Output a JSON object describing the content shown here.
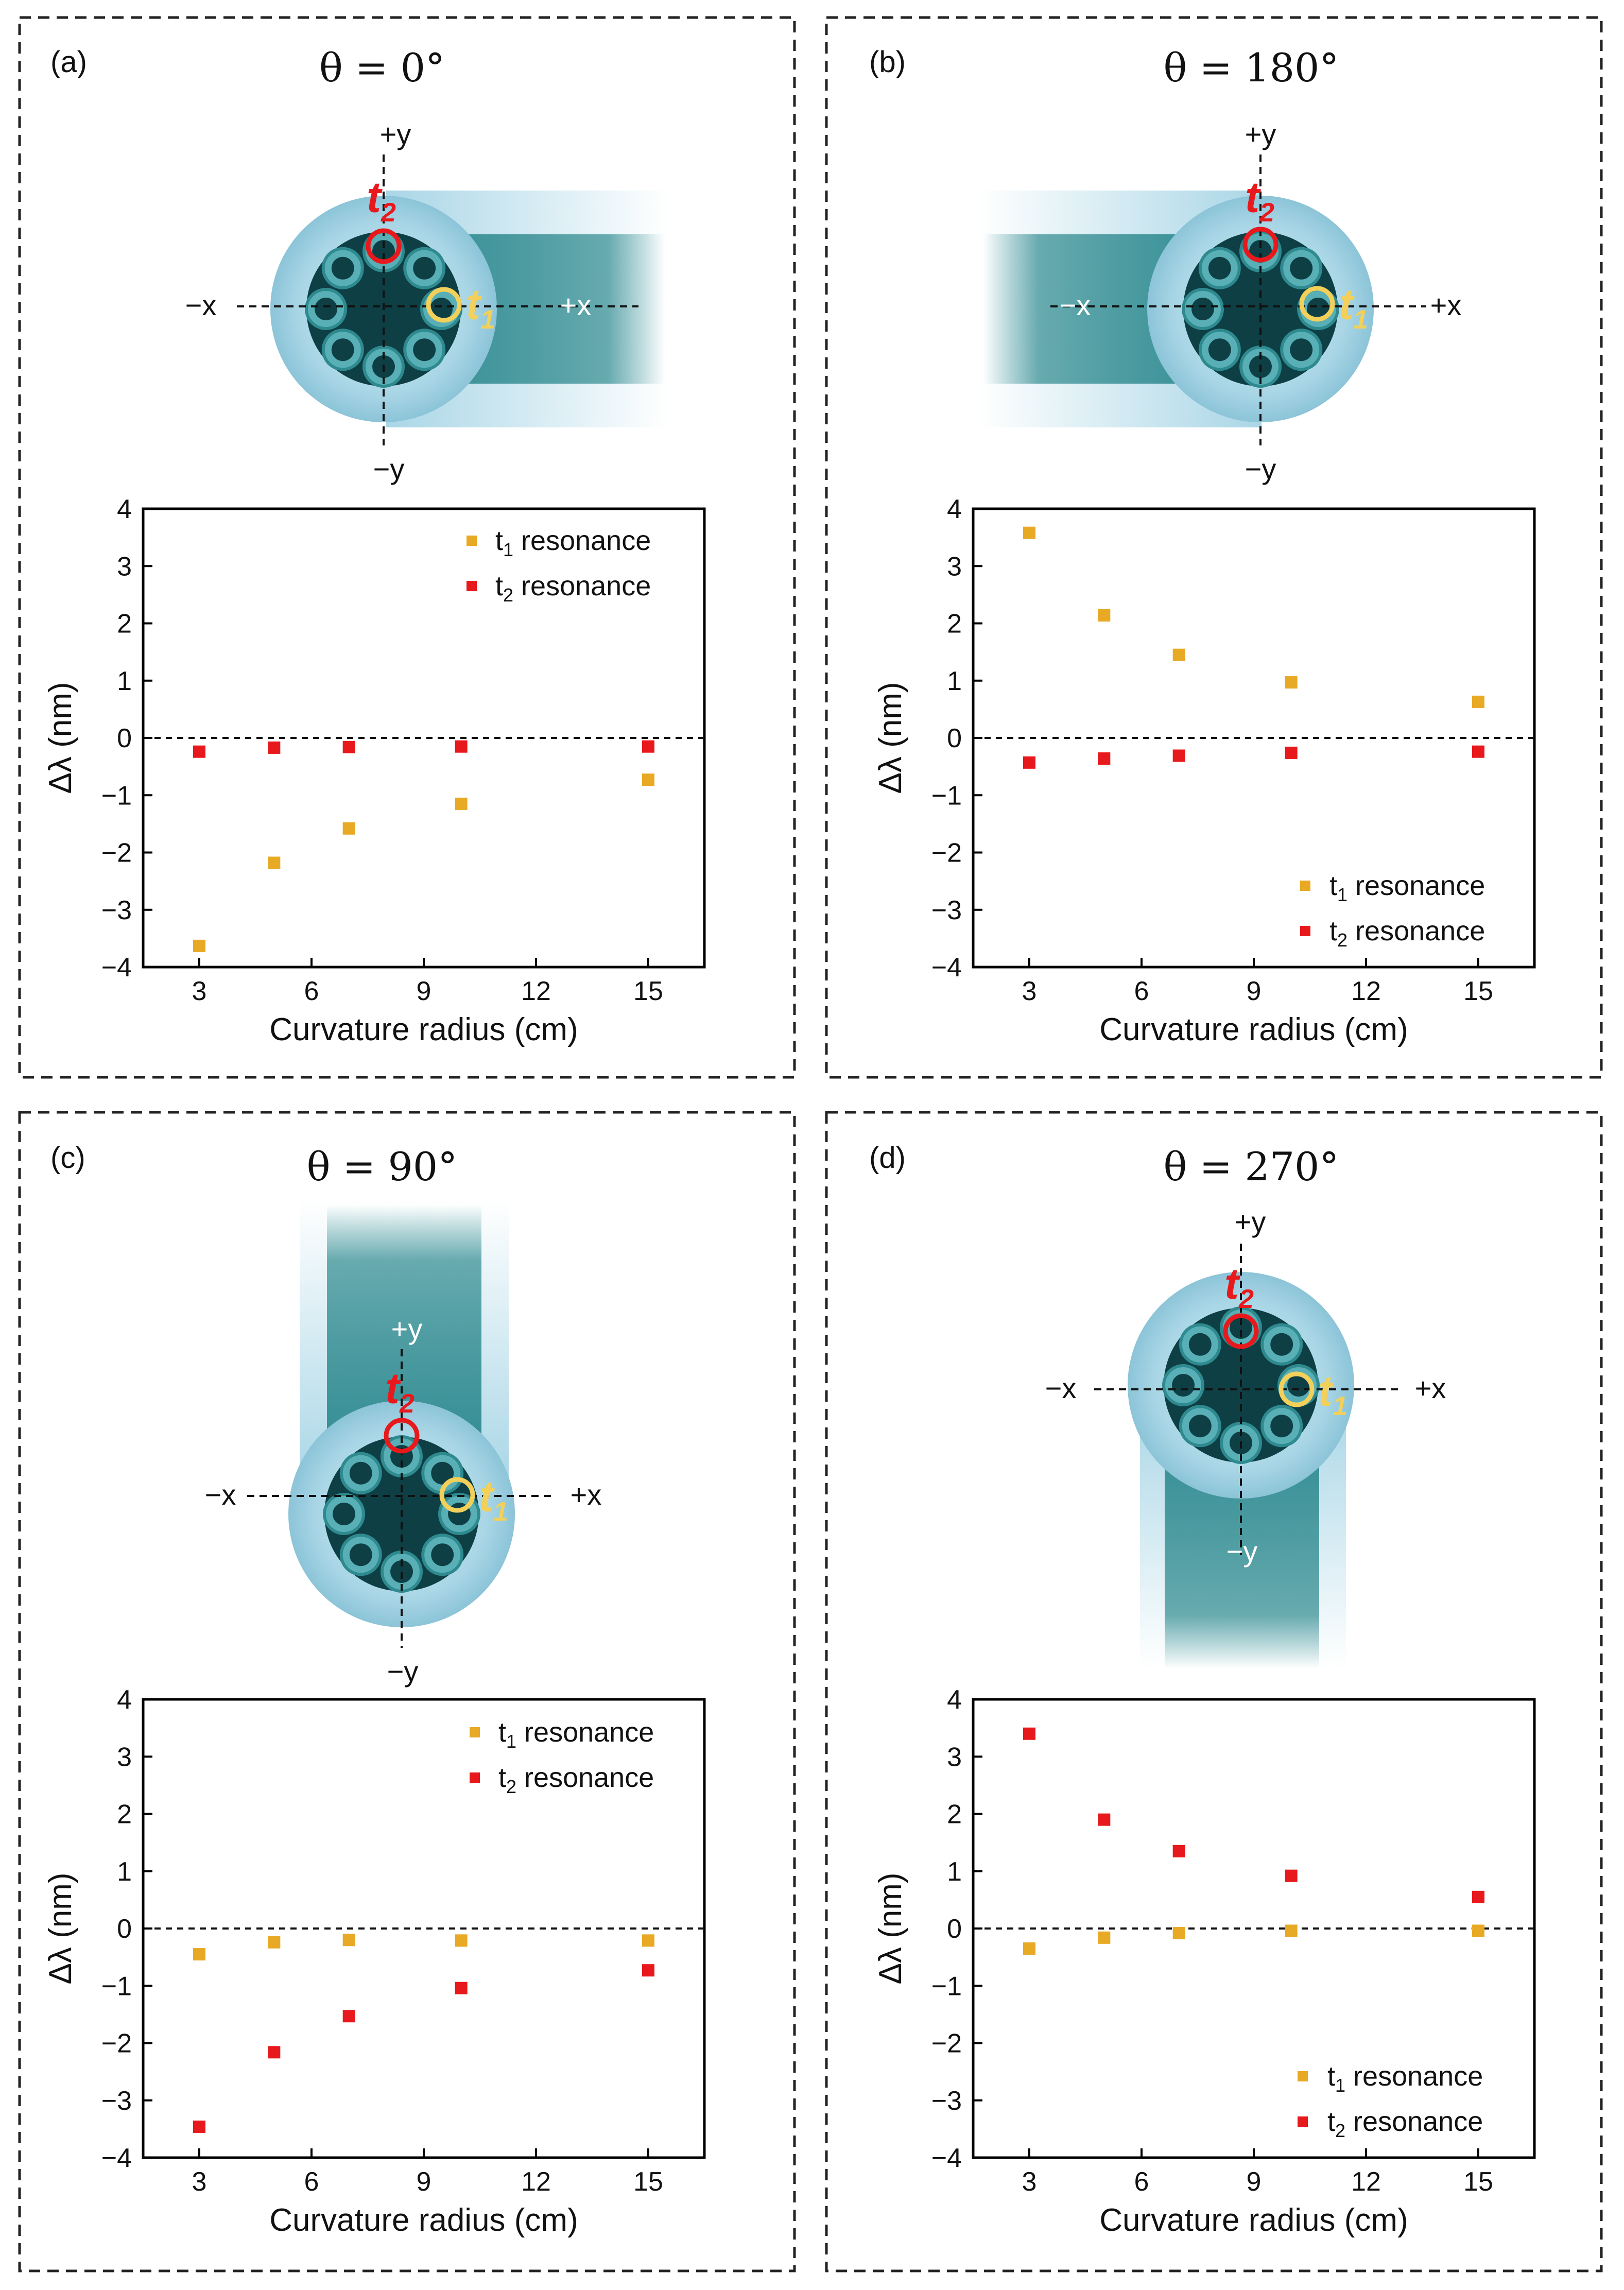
{
  "colors": {
    "t1": "#E8A925",
    "t2": "#E8191C",
    "cladding": "#A9D6E6",
    "core": "#2E8A8F",
    "core_dark": "#0E3F45",
    "tube": "#58AFB5"
  },
  "shared": {
    "minus_x": "−x",
    "plus_x": "+x",
    "minus_y": "−y",
    "plus_y": "+y",
    "t_letter": "t",
    "t1_sub": "1",
    "t2_sub": "2",
    "xlabel": "Curvature radius (cm)",
    "ylabel_main": "Δλ",
    "ylabel_unit": " (nm)",
    "legend_t1_prefix": "t",
    "legend_t1_sub": "1",
    "legend_t1_suffix": " resonance",
    "legend_t2_prefix": "t",
    "legend_t2_sub": "2",
    "legend_t2_suffix": " resonance"
  },
  "chart_data": [
    {
      "panel": "(a)",
      "title": "θ = 0°",
      "type": "scatter",
      "xlabel": "Curvature radius (cm)",
      "ylabel": "Δλ (nm)",
      "xlim": [
        1.5,
        16.5
      ],
      "ylim": [
        -4,
        4
      ],
      "xticks": [
        3,
        6,
        9,
        12,
        15
      ],
      "yticks": [
        -4,
        -3,
        -2,
        -1,
        0,
        1,
        2,
        3,
        4
      ],
      "legend_position": "top-right",
      "series": [
        {
          "name": "t1 resonance",
          "color": "#E8A925",
          "x": [
            3,
            5,
            7,
            10,
            15
          ],
          "y": [
            -3.63,
            -2.18,
            -1.58,
            -1.15,
            -0.73
          ]
        },
        {
          "name": "t2 resonance",
          "color": "#E8191C",
          "x": [
            3,
            5,
            7,
            10,
            15
          ],
          "y": [
            -0.24,
            -0.17,
            -0.16,
            -0.15,
            -0.15
          ]
        }
      ]
    },
    {
      "panel": "(b)",
      "title": "θ = 180°",
      "type": "scatter",
      "xlabel": "Curvature radius (cm)",
      "ylabel": "Δλ (nm)",
      "xlim": [
        1.5,
        16.5
      ],
      "ylim": [
        -4,
        4
      ],
      "xticks": [
        3,
        6,
        9,
        12,
        15
      ],
      "yticks": [
        -4,
        -3,
        -2,
        -1,
        0,
        1,
        2,
        3,
        4
      ],
      "legend_position": "bottom-right",
      "series": [
        {
          "name": "t1 resonance",
          "color": "#E8A925",
          "x": [
            3,
            5,
            7,
            10,
            15
          ],
          "y": [
            3.58,
            2.14,
            1.45,
            0.97,
            0.63
          ]
        },
        {
          "name": "t2 resonance",
          "color": "#E8191C",
          "x": [
            3,
            5,
            7,
            10,
            15
          ],
          "y": [
            -0.43,
            -0.36,
            -0.31,
            -0.26,
            -0.24
          ]
        }
      ]
    },
    {
      "panel": "(c)",
      "title": "θ = 90°",
      "type": "scatter",
      "xlabel": "Curvature radius (cm)",
      "ylabel": "Δλ (nm)",
      "xlim": [
        1.5,
        16.5
      ],
      "ylim": [
        -4,
        4
      ],
      "xticks": [
        3,
        6,
        9,
        12,
        15
      ],
      "yticks": [
        -4,
        -3,
        -2,
        -1,
        0,
        1,
        2,
        3,
        4
      ],
      "legend_position": "top-right",
      "series": [
        {
          "name": "t1 resonance",
          "color": "#E8A925",
          "x": [
            3,
            5,
            7,
            10,
            15
          ],
          "y": [
            -0.45,
            -0.24,
            -0.2,
            -0.21,
            -0.21
          ]
        },
        {
          "name": "t2 resonance",
          "color": "#E8191C",
          "x": [
            3,
            5,
            7,
            10,
            15
          ],
          "y": [
            -3.46,
            -2.16,
            -1.53,
            -1.04,
            -0.73
          ]
        }
      ]
    },
    {
      "panel": "(d)",
      "title": "θ = 270°",
      "type": "scatter",
      "xlabel": "Curvature radius (cm)",
      "ylabel": "Δλ (nm)",
      "xlim": [
        1.5,
        16.5
      ],
      "ylim": [
        -4,
        4
      ],
      "xticks": [
        3,
        6,
        9,
        12,
        15
      ],
      "yticks": [
        -4,
        -3,
        -2,
        -1,
        0,
        1,
        2,
        3,
        4
      ],
      "legend_position": "bottom-right",
      "series": [
        {
          "name": "t1 resonance",
          "color": "#E8A925",
          "x": [
            3,
            5,
            7,
            10,
            15
          ],
          "y": [
            -0.35,
            -0.16,
            -0.08,
            -0.04,
            -0.04
          ]
        },
        {
          "name": "t2 resonance",
          "color": "#E8191C",
          "x": [
            3,
            5,
            7,
            10,
            15
          ],
          "y": [
            3.4,
            1.9,
            1.35,
            0.92,
            0.55
          ]
        }
      ]
    }
  ]
}
